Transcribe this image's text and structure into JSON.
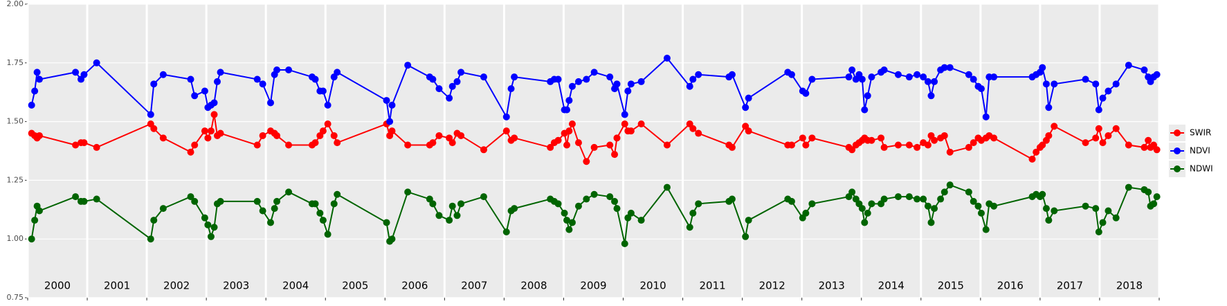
{
  "chart_data": {
    "type": "line",
    "x": [
      2000.066,
      2000.118,
      2000.158,
      2000.197,
      2000.803,
      2000.895,
      2000.947,
      2001.158,
      2002.066,
      2002.118,
      2002.276,
      2002.737,
      2002.803,
      2002.974,
      2003.026,
      2003.079,
      2003.132,
      2003.184,
      2003.237,
      2003.855,
      2003.947,
      2004.079,
      2004.145,
      2004.184,
      2004.382,
      2004.776,
      2004.829,
      2004.908,
      2004.961,
      2005.039,
      2005.145,
      2005.197,
      2006.026,
      2006.079,
      2006.118,
      2006.382,
      2006.75,
      2006.803,
      2006.908,
      2007.079,
      2007.132,
      2007.211,
      2007.276,
      2007.658,
      2008.039,
      2008.118,
      2008.171,
      2008.776,
      2008.842,
      2008.908,
      2009.013,
      2009.053,
      2009.092,
      2009.145,
      2009.25,
      2009.382,
      2009.513,
      2009.776,
      2009.855,
      2009.895,
      2010.026,
      2010.079,
      2010.132,
      2010.303,
      2010.737,
      2011.118,
      2011.171,
      2011.263,
      2011.776,
      2011.829,
      2012.053,
      2012.105,
      2012.763,
      2012.829,
      2013.013,
      2013.066,
      2013.171,
      2013.789,
      2013.842,
      2013.908,
      2013.961,
      2014.013,
      2014.053,
      2014.105,
      2014.171,
      2014.329,
      2014.382,
      2014.618,
      2014.803,
      2014.934,
      2015.039,
      2015.118,
      2015.171,
      2015.224,
      2015.329,
      2015.395,
      2015.487,
      2015.803,
      2015.882,
      2015.961,
      2016.013,
      2016.092,
      2016.145,
      2016.224,
      2016.868,
      2016.934,
      2017.0,
      2017.039,
      2017.105,
      2017.145,
      2017.237,
      2017.763,
      2017.934,
      2017.987,
      2018.053,
      2018.145,
      2018.276,
      2018.487,
      2018.75,
      2018.816,
      2018.855,
      2018.908,
      2018.961
    ],
    "series": [
      {
        "name": "SWIR",
        "color": "#ff0000",
        "values": [
          1.45,
          1.44,
          1.43,
          1.44,
          1.4,
          1.41,
          1.41,
          1.39,
          1.49,
          1.47,
          1.43,
          1.37,
          1.4,
          1.46,
          1.43,
          1.46,
          1.53,
          1.44,
          1.45,
          1.4,
          1.44,
          1.46,
          1.45,
          1.44,
          1.4,
          1.4,
          1.41,
          1.44,
          1.46,
          1.49,
          1.44,
          1.41,
          1.49,
          1.44,
          1.46,
          1.4,
          1.4,
          1.41,
          1.44,
          1.43,
          1.41,
          1.45,
          1.44,
          1.38,
          1.46,
          1.42,
          1.43,
          1.39,
          1.41,
          1.42,
          1.45,
          1.4,
          1.46,
          1.49,
          1.41,
          1.33,
          1.39,
          1.4,
          1.36,
          1.43,
          1.49,
          1.46,
          1.46,
          1.49,
          1.4,
          1.49,
          1.47,
          1.45,
          1.4,
          1.39,
          1.48,
          1.46,
          1.4,
          1.4,
          1.43,
          1.4,
          1.43,
          1.39,
          1.38,
          1.4,
          1.41,
          1.42,
          1.43,
          1.42,
          1.42,
          1.43,
          1.39,
          1.4,
          1.4,
          1.39,
          1.41,
          1.4,
          1.44,
          1.42,
          1.43,
          1.44,
          1.37,
          1.39,
          1.41,
          1.43,
          1.42,
          1.43,
          1.44,
          1.43,
          1.34,
          1.37,
          1.39,
          1.4,
          1.42,
          1.44,
          1.48,
          1.41,
          1.43,
          1.47,
          1.41,
          1.44,
          1.47,
          1.4,
          1.39,
          1.42,
          1.39,
          1.4,
          1.38
        ]
      },
      {
        "name": "NDVI",
        "color": "#0000ff",
        "values": [
          1.57,
          1.63,
          1.71,
          1.68,
          1.71,
          1.68,
          1.7,
          1.75,
          1.53,
          1.66,
          1.7,
          1.68,
          1.61,
          1.63,
          1.56,
          1.57,
          1.58,
          1.67,
          1.71,
          1.68,
          1.66,
          1.58,
          1.7,
          1.72,
          1.72,
          1.69,
          1.68,
          1.63,
          1.63,
          1.57,
          1.69,
          1.71,
          1.59,
          1.5,
          1.57,
          1.74,
          1.69,
          1.68,
          1.64,
          1.6,
          1.65,
          1.67,
          1.71,
          1.69,
          1.52,
          1.64,
          1.69,
          1.67,
          1.68,
          1.68,
          1.55,
          1.55,
          1.59,
          1.65,
          1.67,
          1.68,
          1.71,
          1.69,
          1.64,
          1.66,
          1.53,
          1.63,
          1.66,
          1.67,
          1.77,
          1.65,
          1.68,
          1.7,
          1.69,
          1.7,
          1.56,
          1.6,
          1.71,
          1.7,
          1.63,
          1.62,
          1.68,
          1.69,
          1.72,
          1.68,
          1.7,
          1.68,
          1.55,
          1.61,
          1.69,
          1.71,
          1.72,
          1.7,
          1.69,
          1.7,
          1.69,
          1.67,
          1.61,
          1.67,
          1.72,
          1.73,
          1.73,
          1.7,
          1.68,
          1.65,
          1.64,
          1.52,
          1.69,
          1.69,
          1.69,
          1.7,
          1.71,
          1.73,
          1.66,
          1.56,
          1.66,
          1.68,
          1.66,
          1.55,
          1.6,
          1.63,
          1.66,
          1.74,
          1.72,
          1.69,
          1.67,
          1.69,
          1.7
        ]
      },
      {
        "name": "NDWI",
        "color": "#006400",
        "values": [
          1.0,
          1.08,
          1.14,
          1.12,
          1.18,
          1.16,
          1.16,
          1.17,
          1.0,
          1.08,
          1.13,
          1.18,
          1.16,
          1.09,
          1.06,
          1.01,
          1.05,
          1.15,
          1.16,
          1.16,
          1.12,
          1.07,
          1.13,
          1.16,
          1.2,
          1.15,
          1.15,
          1.11,
          1.08,
          1.02,
          1.15,
          1.19,
          1.07,
          0.99,
          1.0,
          1.2,
          1.17,
          1.15,
          1.1,
          1.08,
          1.14,
          1.1,
          1.15,
          1.18,
          1.03,
          1.12,
          1.13,
          1.17,
          1.16,
          1.15,
          1.11,
          1.08,
          1.04,
          1.07,
          1.14,
          1.17,
          1.19,
          1.18,
          1.16,
          1.13,
          0.98,
          1.09,
          1.11,
          1.08,
          1.22,
          1.05,
          1.11,
          1.15,
          1.16,
          1.17,
          1.01,
          1.08,
          1.17,
          1.16,
          1.09,
          1.11,
          1.15,
          1.18,
          1.2,
          1.17,
          1.15,
          1.13,
          1.07,
          1.11,
          1.15,
          1.15,
          1.17,
          1.18,
          1.18,
          1.17,
          1.17,
          1.14,
          1.07,
          1.13,
          1.17,
          1.2,
          1.23,
          1.2,
          1.16,
          1.14,
          1.11,
          1.04,
          1.15,
          1.14,
          1.18,
          1.19,
          1.18,
          1.19,
          1.13,
          1.08,
          1.12,
          1.14,
          1.13,
          1.03,
          1.07,
          1.12,
          1.09,
          1.22,
          1.21,
          1.2,
          1.14,
          1.15,
          1.18
        ]
      }
    ],
    "xlim": [
      2000,
      2019
    ],
    "xticks": [
      2000,
      2001,
      2002,
      2003,
      2004,
      2005,
      2006,
      2007,
      2008,
      2009,
      2010,
      2011,
      2012,
      2013,
      2014,
      2015,
      2016,
      2017,
      2018,
      2019
    ],
    "year_labels": [
      "2000",
      "2001",
      "2002",
      "2003",
      "2004",
      "2005",
      "2006",
      "2007",
      "2008",
      "2009",
      "2010",
      "2011",
      "2012",
      "2013",
      "2014",
      "2015",
      "2016",
      "2017",
      "2018"
    ],
    "ylim": [
      0.75,
      2.0
    ],
    "yticks": [
      {
        "value": 0.75,
        "label": "0.75"
      },
      {
        "value": 1.0,
        "label": "1.00"
      },
      {
        "value": 1.25,
        "label": "1.25"
      },
      {
        "value": 1.5,
        "label": "1.50"
      },
      {
        "value": 1.75,
        "label": "1.75"
      },
      {
        "value": 2.0,
        "label": "2.00"
      }
    ],
    "grid": true,
    "legend": "right"
  }
}
